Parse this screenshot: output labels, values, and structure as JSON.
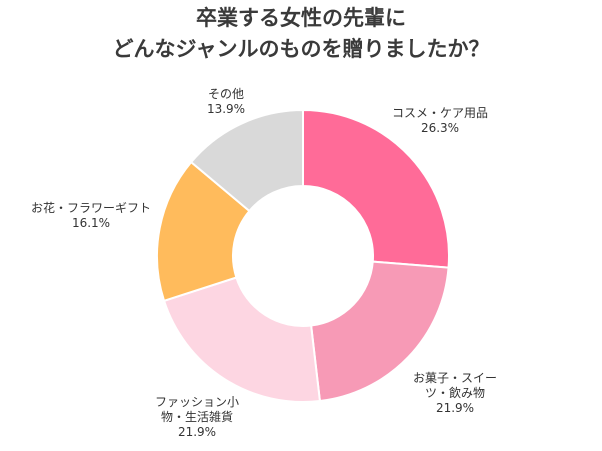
{
  "title_lines": [
    "卒業する女性の先輩に",
    "どんなジャンルのものを贈りましたか？"
  ],
  "chart_data": {
    "type": "pie",
    "variant": "donut",
    "slices": [
      {
        "label": "コスメ・ケア用品",
        "value": 26.3,
        "display": "26.3%",
        "color": "#ff6b98"
      },
      {
        "label_lines": [
          "お菓子・スイー",
          "ツ・飲み物"
        ],
        "value": 21.9,
        "display": "21.9%",
        "color": "#f79ab6"
      },
      {
        "label_lines": [
          "ファッション小",
          "物・生活雑貨"
        ],
        "value": 21.9,
        "display": "21.9%",
        "color": "#fdd6e2"
      },
      {
        "label": "お花・フラワーギフト",
        "value": 16.1,
        "display": "16.1%",
        "color": "#ffbb5c"
      },
      {
        "label": "その他",
        "value": 13.9,
        "display": "13.9%",
        "color": "#d9d9d9"
      }
    ]
  }
}
